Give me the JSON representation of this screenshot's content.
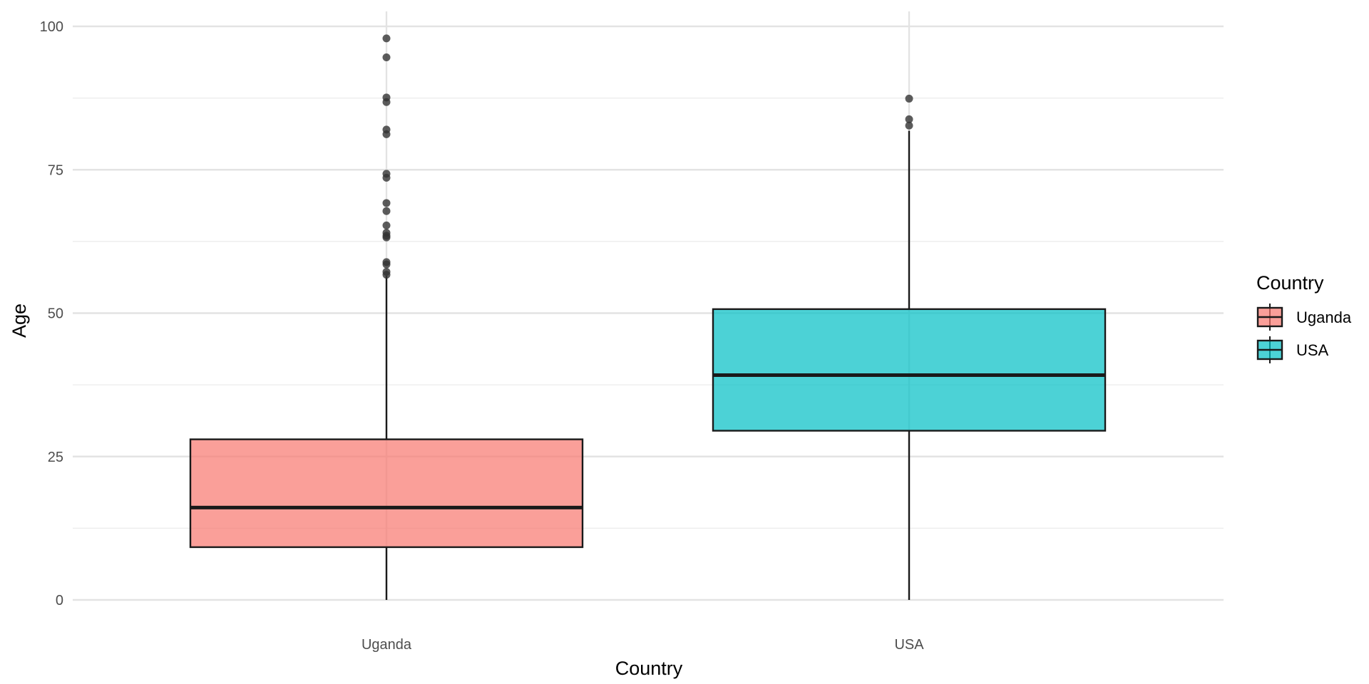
{
  "chart_data": {
    "type": "box",
    "xlabel": "Country",
    "ylabel": "Age",
    "ylim": [
      0,
      100
    ],
    "yticks": [
      0,
      25,
      50,
      75,
      100
    ],
    "categories": [
      "Uganda",
      "USA"
    ],
    "grid": true,
    "legend": {
      "title": "Country",
      "position": "right",
      "entries": [
        "Uganda",
        "USA"
      ]
    },
    "series": [
      {
        "name": "Uganda",
        "color": "#F8766D",
        "min": 0,
        "q1": 9.2,
        "median": 16.1,
        "q3": 28.0,
        "whisker_high": 56.5,
        "outliers": [
          56.7,
          57.2,
          58.5,
          58.9,
          63.2,
          63.5,
          64.0,
          65.3,
          67.8,
          69.2,
          73.6,
          74.3,
          81.2,
          82.0,
          86.8,
          87.6,
          94.6,
          97.9
        ]
      },
      {
        "name": "USA",
        "color": "#00BFC4",
        "min": 0,
        "q1": 29.5,
        "median": 39.2,
        "q3": 50.7,
        "whisker_high": 81.8,
        "outliers": [
          82.7,
          83.8,
          87.4
        ]
      }
    ]
  }
}
